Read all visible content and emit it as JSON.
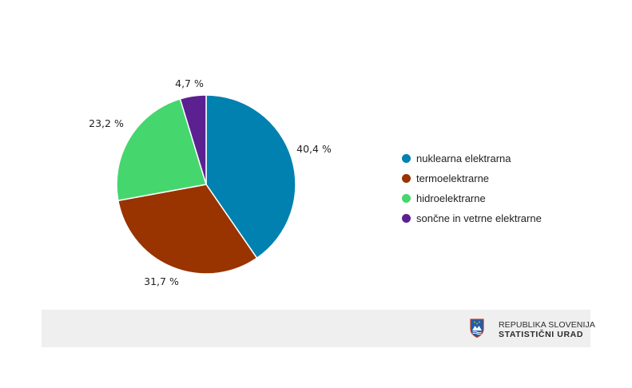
{
  "chart_data": {
    "type": "pie",
    "title": "",
    "legend_position": "right",
    "slices": [
      {
        "name": "nuklearna elektrarna",
        "value": 40.4,
        "label": "40,4 %",
        "color": "#0081b0"
      },
      {
        "name": "termoelektrarne",
        "value": 31.7,
        "label": "31,7 %",
        "color": "#993300"
      },
      {
        "name": "hidroelektrarne",
        "value": 23.2,
        "label": "23,2 %",
        "color": "#45d66e"
      },
      {
        "name": "sončne in vetrne elektrarne",
        "value": 4.7,
        "label": "4,7 %",
        "color": "#5c2191"
      }
    ]
  },
  "footer": {
    "org_line1": "REPUBLIKA SLOVENIJA",
    "org_line2": "STATISTIČNI URAD",
    "logo_icon": "slovenia-coat-of-arms-icon"
  }
}
